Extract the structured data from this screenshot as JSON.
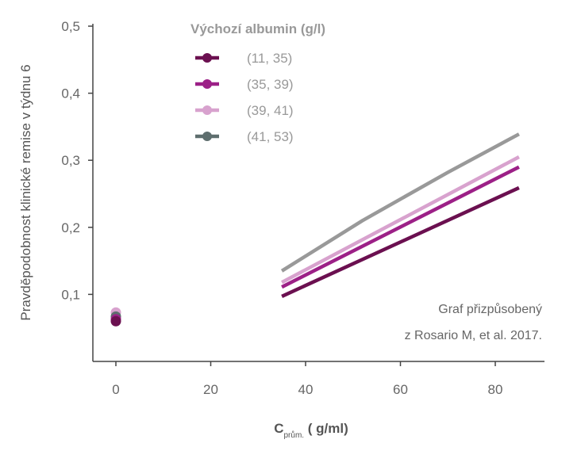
{
  "chart_data": {
    "type": "line",
    "title": "",
    "xlabel_main": "C",
    "xlabel_sub": "prům.",
    "xlabel_rest": " ( g/ml)",
    "ylabel": "Pravděpodobnost klinické remise v týdnu 6",
    "xlim": [
      -4,
      90
    ],
    "ylim": [
      0,
      0.5
    ],
    "x_ticks": [
      0,
      20,
      40,
      60,
      80
    ],
    "x_tick_labels": [
      "0",
      "20",
      "40",
      "60",
      "80"
    ],
    "y_ticks": [
      0.1,
      0.2,
      0.3,
      0.4,
      0.5
    ],
    "y_tick_labels": [
      "0,1",
      "0,2",
      "0,3",
      "0,4",
      "0,5"
    ],
    "legend": {
      "title": "Výchozí albumin (g/l)",
      "placement": "top-left"
    },
    "annotation": [
      "Graf přizpůsobený",
      "z Rosario M, et al. 2017."
    ],
    "series": [
      {
        "name": "(11, 35)",
        "color": "#6b1050",
        "x": [
          35,
          85
        ],
        "y": [
          0.097,
          0.259
        ],
        "point": {
          "x": 0,
          "y": 0.06
        }
      },
      {
        "name": "(35, 39)",
        "color": "#9c2087",
        "x": [
          35,
          85
        ],
        "y": [
          0.111,
          0.29
        ],
        "point": {
          "x": 0,
          "y": 0.063
        }
      },
      {
        "name": "(39, 41)",
        "color": "#d8a2ce",
        "x": [
          35,
          85
        ],
        "y": [
          0.118,
          0.305
        ],
        "point": {
          "x": 0,
          "y": 0.073
        }
      },
      {
        "name": "(41, 53)",
        "color": "#999999",
        "legend_color": "#5e6e6e",
        "x": [
          35,
          52,
          70,
          85
        ],
        "y": [
          0.135,
          0.21,
          0.282,
          0.339
        ],
        "point": {
          "x": 0,
          "y": 0.067
        }
      }
    ]
  }
}
